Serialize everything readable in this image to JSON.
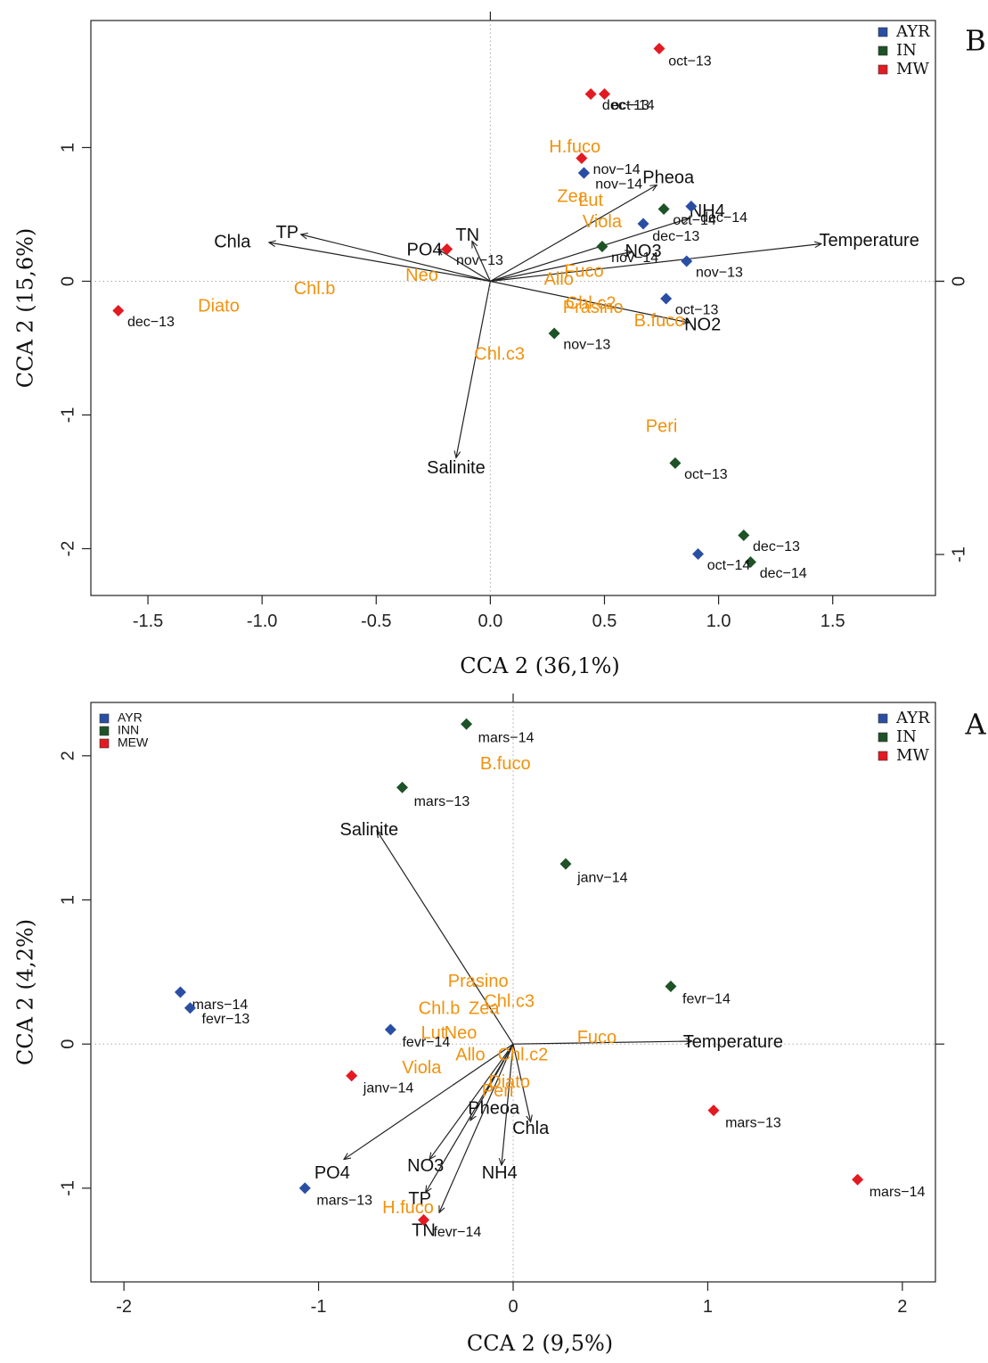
{
  "colors": {
    "AYR": "#2a4ea3",
    "IN": "#1e5227",
    "MW": "#e31a22",
    "pigment": "#f0920e",
    "env": "#111111"
  },
  "chart_data": [
    {
      "type": "scatter",
      "panel_letter": "B",
      "xlabel": "CCA 2 (36,1%)",
      "ylabel": "CCA 2 (15,6%)",
      "xlim": [
        -1.75,
        1.95
      ],
      "ylim": [
        -2.35,
        1.95
      ],
      "x_ticks": [
        "-1.5",
        "-1.0",
        "-0.5",
        "0.0",
        "0.5",
        "1.0",
        "1.5"
      ],
      "x_tick_values": [
        -1.5,
        -1.0,
        -0.5,
        0.0,
        0.5,
        1.0,
        1.5
      ],
      "y_ticks": [
        "-2",
        "-1",
        "0",
        "1"
      ],
      "y_tick_values": [
        -2,
        -1,
        0,
        1
      ],
      "right_ticks": [
        "-1",
        "0"
      ],
      "right_tick_values": [
        -2.04,
        0.0
      ],
      "legend": {
        "position": "top-right",
        "entries": [
          {
            "key": "AYR",
            "label": "AYR"
          },
          {
            "key": "IN",
            "label": "IN"
          },
          {
            "key": "MW",
            "label": "MW"
          }
        ]
      },
      "sites": [
        {
          "g": "MW",
          "x": 0.74,
          "y": 1.74,
          "label": "oct−13",
          "lx": 0.78,
          "ly": 1.64
        },
        {
          "g": "MW",
          "x": 0.44,
          "y": 1.4,
          "label": "dec−13",
          "lx": 0.49,
          "ly": 1.31
        },
        {
          "g": "MW",
          "x": 0.5,
          "y": 1.4,
          "label": "oct−14",
          "lx": 0.53,
          "ly": 1.31
        },
        {
          "g": "MW",
          "x": 0.4,
          "y": 0.92,
          "label": "",
          "lx": 0,
          "ly": 0
        },
        {
          "g": "AYR",
          "x": 0.41,
          "y": 0.81,
          "label": "nov−14",
          "lx": 0.45,
          "ly": 0.83
        },
        {
          "g": "AYR",
          "x": 0.41,
          "y": 0.81,
          "label": "nov−14",
          "lx": 0.46,
          "ly": 0.72
        },
        {
          "g": "AYR",
          "x": 0.88,
          "y": 0.56,
          "label": "dec−14",
          "lx": 0.92,
          "ly": 0.47
        },
        {
          "g": "IN",
          "x": 0.76,
          "y": 0.54,
          "label": "oct−14",
          "lx": 0.8,
          "ly": 0.45
        },
        {
          "g": "AYR",
          "x": 0.67,
          "y": 0.43,
          "label": "dec−13",
          "lx": 0.71,
          "ly": 0.33
        },
        {
          "g": "IN",
          "x": 0.49,
          "y": 0.26,
          "label": "nov−14",
          "lx": 0.53,
          "ly": 0.17
        },
        {
          "g": "AYR",
          "x": 0.86,
          "y": 0.15,
          "label": "nov−13",
          "lx": 0.9,
          "ly": 0.06
        },
        {
          "g": "MW",
          "x": -0.19,
          "y": 0.24,
          "label": "nov−13",
          "lx": -0.15,
          "ly": 0.15
        },
        {
          "g": "AYR",
          "x": 0.77,
          "y": -0.13,
          "label": "oct−13",
          "lx": 0.81,
          "ly": -0.22
        },
        {
          "g": "IN",
          "x": 0.28,
          "y": -0.39,
          "label": "nov−13",
          "lx": 0.32,
          "ly": -0.48
        },
        {
          "g": "MW",
          "x": -1.63,
          "y": -0.22,
          "label": "dec−13",
          "lx": -1.59,
          "ly": -0.31
        },
        {
          "g": "IN",
          "x": 0.81,
          "y": -1.36,
          "label": "oct−13",
          "lx": 0.85,
          "ly": -1.45
        },
        {
          "g": "IN",
          "x": 1.11,
          "y": -1.9,
          "label": "dec−13",
          "lx": 1.15,
          "ly": -1.99
        },
        {
          "g": "IN",
          "x": 1.14,
          "y": -2.1,
          "label": "dec−14",
          "lx": 1.18,
          "ly": -2.19
        },
        {
          "g": "AYR",
          "x": 0.91,
          "y": -2.04,
          "label": "oct−14",
          "lx": 0.95,
          "ly": -2.13
        }
      ],
      "pigments": [
        {
          "label": "H.fuco",
          "x": 0.37,
          "y": 1.0
        },
        {
          "label": "Zea",
          "x": 0.36,
          "y": 0.63
        },
        {
          "label": "Lut",
          "x": 0.44,
          "y": 0.6
        },
        {
          "label": "Viola",
          "x": 0.49,
          "y": 0.44
        },
        {
          "label": "Fuco",
          "x": 0.41,
          "y": 0.07
        },
        {
          "label": "Allo",
          "x": 0.3,
          "y": 0.01
        },
        {
          "label": "Chl.c2",
          "x": 0.44,
          "y": -0.17
        },
        {
          "label": "Prasino",
          "x": 0.45,
          "y": -0.2
        },
        {
          "label": "B.fuco",
          "x": 0.74,
          "y": -0.3
        },
        {
          "label": "Neo",
          "x": -0.3,
          "y": 0.04
        },
        {
          "label": "Chl.b",
          "x": -0.77,
          "y": -0.06
        },
        {
          "label": "Diato",
          "x": -1.19,
          "y": -0.19
        },
        {
          "label": "Chl.c3",
          "x": 0.04,
          "y": -0.55
        },
        {
          "label": "Peri",
          "x": 0.75,
          "y": -1.09
        }
      ],
      "vectors": [
        {
          "label": "Chla",
          "x": -0.97,
          "y": 0.29,
          "lx": -1.05,
          "ly": 0.29,
          "anchor": "end"
        },
        {
          "label": "TP",
          "x": -0.83,
          "y": 0.35,
          "lx": -0.84,
          "ly": 0.36,
          "anchor": "end"
        },
        {
          "label": "PO4",
          "x": -0.23,
          "y": 0.24,
          "lx": -0.21,
          "ly": 0.23,
          "anchor": "end"
        },
        {
          "label": "TN",
          "x": -0.08,
          "y": 0.3,
          "lx": -0.1,
          "ly": 0.34,
          "anchor": "middle"
        },
        {
          "label": "Pheoa",
          "x": 0.73,
          "y": 0.72,
          "lx": 0.78,
          "ly": 0.77,
          "anchor": "middle"
        },
        {
          "label": "NH4",
          "x": 0.87,
          "y": 0.47,
          "lx": 0.95,
          "ly": 0.52,
          "anchor": "middle"
        },
        {
          "label": "NO3",
          "x": 0.62,
          "y": 0.22,
          "lx": 0.67,
          "ly": 0.22,
          "anchor": "middle"
        },
        {
          "label": "Temperature",
          "x": 1.45,
          "y": 0.28,
          "lx": 1.66,
          "ly": 0.3,
          "anchor": "middle"
        },
        {
          "label": "NO2",
          "x": 0.87,
          "y": -0.31,
          "lx": 0.93,
          "ly": -0.33,
          "anchor": "middle"
        },
        {
          "label": "Salinite",
          "x": -0.15,
          "y": -1.32,
          "lx": -0.15,
          "ly": -1.4,
          "anchor": "middle"
        }
      ]
    },
    {
      "type": "scatter",
      "panel_letter": "A",
      "xlabel": "CCA 2 (9,5%)",
      "ylabel": "CCA 2 (4,2%)",
      "xlim": [
        -2.17,
        2.17
      ],
      "ylim": [
        -1.65,
        2.37
      ],
      "x_ticks": [
        "-2",
        "-1",
        "0",
        "1",
        "2"
      ],
      "x_tick_values": [
        -2,
        -1,
        0,
        1,
        2
      ],
      "y_ticks": [
        "-1",
        "0",
        "1",
        "2"
      ],
      "y_tick_values": [
        -1,
        0,
        1,
        2
      ],
      "right_ticks": [],
      "right_tick_values": [],
      "legend": {
        "position": "top-right",
        "entries": [
          {
            "key": "AYR",
            "label": "AYR"
          },
          {
            "key": "IN",
            "label": "IN"
          },
          {
            "key": "MW",
            "label": "MW"
          }
        ]
      },
      "legend_left": {
        "position": "top-left",
        "entries": [
          {
            "key": "AYR",
            "label": "AYR"
          },
          {
            "key": "IN",
            "label": "INN"
          },
          {
            "key": "MW",
            "label": "MEW"
          }
        ]
      },
      "sites": [
        {
          "g": "IN",
          "x": -0.24,
          "y": 2.22,
          "label": "mars−14",
          "lx": -0.18,
          "ly": 2.12
        },
        {
          "g": "IN",
          "x": -0.57,
          "y": 1.78,
          "label": "mars−13",
          "lx": -0.51,
          "ly": 1.68
        },
        {
          "g": "IN",
          "x": 0.27,
          "y": 1.25,
          "label": "janv−14",
          "lx": 0.33,
          "ly": 1.15
        },
        {
          "g": "IN",
          "x": 0.81,
          "y": 0.4,
          "label": "fevr−14",
          "lx": 0.87,
          "ly": 0.31
        },
        {
          "g": "AYR",
          "x": -1.71,
          "y": 0.36,
          "label": "mars−14",
          "lx": -1.65,
          "ly": 0.27
        },
        {
          "g": "AYR",
          "x": -1.66,
          "y": 0.25,
          "label": "fevr−13",
          "lx": -1.6,
          "ly": 0.17
        },
        {
          "g": "AYR",
          "x": -0.63,
          "y": 0.1,
          "label": "fevr−14",
          "lx": -0.57,
          "ly": 0.01
        },
        {
          "g": "MW",
          "x": -0.83,
          "y": -0.22,
          "label": "janv−14",
          "lx": -0.77,
          "ly": -0.31
        },
        {
          "g": "MW",
          "x": 1.03,
          "y": -0.46,
          "label": "mars−13",
          "lx": 1.09,
          "ly": -0.55
        },
        {
          "g": "MW",
          "x": 1.77,
          "y": -0.94,
          "label": "mars−14",
          "lx": 1.83,
          "ly": -1.03
        },
        {
          "g": "AYR",
          "x": -1.07,
          "y": -1.0,
          "label": "mars−13",
          "lx": -1.01,
          "ly": -1.09
        },
        {
          "g": "MW",
          "x": -0.46,
          "y": -1.22,
          "label": "fevr−14",
          "lx": -0.41,
          "ly": -1.31
        }
      ],
      "pigments": [
        {
          "label": "B.fuco",
          "x": -0.04,
          "y": 1.94
        },
        {
          "label": "Prasino",
          "x": -0.18,
          "y": 0.43
        },
        {
          "label": "Chl.c3",
          "x": -0.02,
          "y": 0.29
        },
        {
          "label": "Chl.b",
          "x": -0.38,
          "y": 0.24
        },
        {
          "label": "Zea",
          "x": -0.15,
          "y": 0.24
        },
        {
          "label": "Lut",
          "x": -0.41,
          "y": 0.07
        },
        {
          "label": "Neo",
          "x": -0.27,
          "y": 0.07
        },
        {
          "label": "Fuco",
          "x": 0.43,
          "y": 0.04
        },
        {
          "label": "Allo",
          "x": -0.22,
          "y": -0.08
        },
        {
          "label": "Chl.c2",
          "x": 0.05,
          "y": -0.08
        },
        {
          "label": "Viola",
          "x": -0.47,
          "y": -0.17
        },
        {
          "label": "Diato",
          "x": -0.02,
          "y": -0.27
        },
        {
          "label": "Peri",
          "x": -0.08,
          "y": -0.33
        },
        {
          "label": "H.fuco",
          "x": -0.54,
          "y": -1.14
        }
      ],
      "vectors": [
        {
          "label": "Salinite",
          "x": -0.7,
          "y": 1.48,
          "lx": -0.74,
          "ly": 1.48,
          "anchor": "middle"
        },
        {
          "label": "Temperature",
          "x": 0.92,
          "y": 0.02,
          "lx": 1.13,
          "ly": 0.01,
          "anchor": "middle"
        },
        {
          "label": "Pheoa",
          "x": -0.22,
          "y": -0.53,
          "lx": -0.1,
          "ly": -0.45,
          "anchor": "middle"
        },
        {
          "label": "Chla",
          "x": 0.09,
          "y": -0.54,
          "lx": 0.09,
          "ly": -0.59,
          "anchor": "middle"
        },
        {
          "label": "NH4",
          "x": -0.06,
          "y": -0.84,
          "lx": -0.07,
          "ly": -0.9,
          "anchor": "middle"
        },
        {
          "label": "NO3",
          "x": -0.43,
          "y": -0.8,
          "lx": -0.45,
          "ly": -0.85,
          "anchor": "middle"
        },
        {
          "label": "PO4",
          "x": -0.87,
          "y": -0.8,
          "lx": -0.93,
          "ly": -0.9,
          "anchor": "middle"
        },
        {
          "label": "TP",
          "x": -0.45,
          "y": -1.03,
          "lx": -0.48,
          "ly": -1.08,
          "anchor": "middle"
        },
        {
          "label": "TN",
          "x": -0.38,
          "y": -1.17,
          "lx": -0.46,
          "ly": -1.3,
          "anchor": "middle"
        }
      ]
    }
  ]
}
